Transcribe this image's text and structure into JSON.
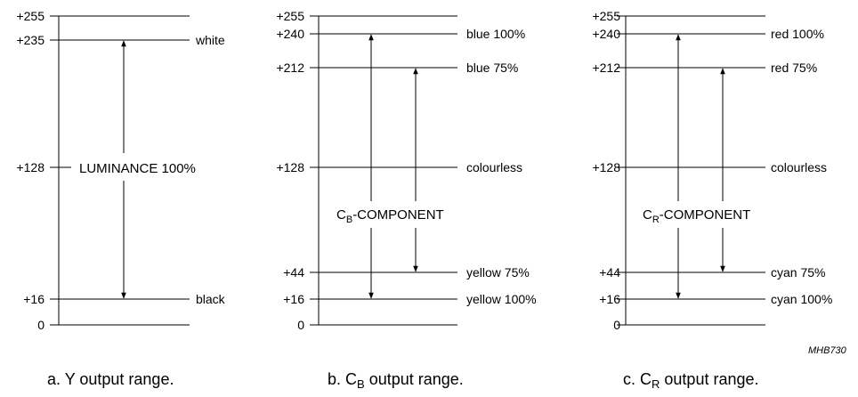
{
  "panels": [
    {
      "id": "y",
      "ticks": [
        "+255",
        "+235",
        "+128",
        "+16",
        "0"
      ],
      "right_labels": [
        "white",
        "black"
      ],
      "component_label": "LUMINANCE 100%",
      "caption": {
        "prefix": "a.  Y output range.",
        "sub": "",
        "suffix": ""
      }
    },
    {
      "id": "cb",
      "ticks": [
        "+255",
        "+240",
        "+212",
        "+128",
        "+44",
        "+16",
        "0"
      ],
      "right_labels": [
        "blue 100%",
        "blue 75%",
        "colourless",
        "yellow 75%",
        "yellow 100%"
      ],
      "component_label": {
        "main": "C",
        "sub": "B",
        "rest": "-COMPONENT"
      },
      "caption": {
        "prefix": "b.  C",
        "sub": "B",
        "suffix": " output range."
      }
    },
    {
      "id": "cr",
      "ticks": [
        "+255",
        "+240",
        "+212",
        "+128",
        "+44",
        "+16",
        "0"
      ],
      "right_labels": [
        "red 100%",
        "red 75%",
        "colourless",
        "cyan 75%",
        "cyan 100%"
      ],
      "component_label": {
        "main": "C",
        "sub": "R",
        "rest": "-COMPONENT"
      },
      "caption": {
        "prefix": "c.  C",
        "sub": "R",
        "suffix": " output range."
      }
    }
  ],
  "reference_code": "MHB730"
}
